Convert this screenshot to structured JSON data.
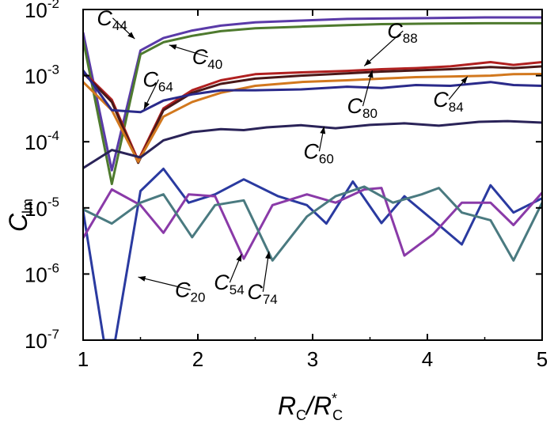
{
  "chart_data": {
    "type": "line",
    "title": "",
    "xlabel": {
      "main": "R",
      "sub1": "C",
      "slash": "/",
      "main2": "R",
      "sup": "*",
      "sub2": "C"
    },
    "ylabel": {
      "main": "C",
      "sub": "lm"
    },
    "xlim": [
      1,
      5
    ],
    "ylim": [
      1e-07,
      0.01
    ],
    "yscale": "log",
    "grid": false,
    "xticks": [
      {
        "value": 1,
        "label": "1"
      },
      {
        "value": 2,
        "label": "2"
      },
      {
        "value": 3,
        "label": "3"
      },
      {
        "value": 4,
        "label": "4"
      },
      {
        "value": 5,
        "label": "5"
      }
    ],
    "yticks": [
      {
        "value": 1e-07,
        "base": "10",
        "exp": "-7"
      },
      {
        "value": 1e-06,
        "base": "10",
        "exp": "-6"
      },
      {
        "value": 1e-05,
        "base": "10",
        "exp": "-5"
      },
      {
        "value": 0.0001,
        "base": "10",
        "exp": "-4"
      },
      {
        "value": 0.001,
        "base": "10",
        "exp": "-3"
      },
      {
        "value": 0.01,
        "base": "10",
        "exp": "-2"
      }
    ],
    "series": [
      {
        "id": "C44",
        "color": "#5a3aa8",
        "x": [
          1,
          1.25,
          1.5,
          1.7,
          1.95,
          2.2,
          2.5,
          2.9,
          3.3,
          3.6,
          4.0,
          4.5,
          5.0
        ],
        "y": [
          0.0045,
          3.7e-05,
          0.0024,
          0.0037,
          0.0048,
          0.0057,
          0.0064,
          0.0068,
          0.0072,
          0.0073,
          0.0074,
          0.0076,
          0.0076
        ]
      },
      {
        "id": "C40",
        "color": "#4e7a2e",
        "x": [
          1,
          1.25,
          1.5,
          1.7,
          1.95,
          2.2,
          2.5,
          2.9,
          3.3,
          3.6,
          4.0,
          4.5,
          5.0
        ],
        "y": [
          0.0035,
          2.3e-05,
          0.0021,
          0.0032,
          0.004,
          0.0047,
          0.0052,
          0.0055,
          0.0058,
          0.006,
          0.0061,
          0.0062,
          0.0062
        ]
      },
      {
        "id": "C88",
        "color": "#b02020",
        "x": [
          1,
          1.25,
          1.48,
          1.7,
          1.95,
          2.2,
          2.5,
          2.9,
          3.3,
          3.6,
          3.9,
          4.2,
          4.55,
          4.75,
          5.0
        ],
        "y": [
          0.00115,
          0.00043,
          5.2e-05,
          0.00032,
          0.0006,
          0.00085,
          0.00105,
          0.00112,
          0.00118,
          0.00125,
          0.0013,
          0.00138,
          0.0016,
          0.00145,
          0.0016
        ]
      },
      {
        "id": "C80",
        "color": "#4a1818",
        "x": [
          1,
          1.25,
          1.48,
          1.7,
          1.95,
          2.2,
          2.5,
          2.9,
          3.3,
          3.6,
          3.9,
          4.2,
          4.55,
          4.75,
          5.0
        ],
        "y": [
          0.0011,
          0.0004,
          4.8e-05,
          0.0003,
          0.00055,
          0.00075,
          0.0009,
          0.001,
          0.00108,
          0.00115,
          0.0012,
          0.00125,
          0.00135,
          0.0013,
          0.00138
        ]
      },
      {
        "id": "C84",
        "color": "#d2781e",
        "x": [
          1,
          1.25,
          1.48,
          1.7,
          1.95,
          2.2,
          2.5,
          2.9,
          3.3,
          3.6,
          3.9,
          4.2,
          4.55,
          4.75,
          5.0
        ],
        "y": [
          0.0008,
          0.0003,
          5e-05,
          0.00024,
          0.0004,
          0.00055,
          0.0007,
          0.0008,
          0.00085,
          0.0009,
          0.00095,
          0.00097,
          0.001,
          0.00105,
          0.00106
        ]
      },
      {
        "id": "C64",
        "color": "#2a2a8a",
        "x": [
          1,
          1.25,
          1.5,
          1.7,
          1.95,
          2.2,
          2.5,
          2.9,
          3.3,
          3.6,
          3.9,
          4.2,
          4.55,
          4.75,
          5.0
        ],
        "y": [
          0.0012,
          0.0003,
          0.00028,
          0.00042,
          0.00052,
          0.0006,
          0.0006,
          0.00062,
          0.00068,
          0.00065,
          0.00072,
          0.0007,
          0.0008,
          0.00072,
          0.0007
        ]
      },
      {
        "id": "C60",
        "color": "#2a2358",
        "x": [
          1,
          1.25,
          1.5,
          1.7,
          1.95,
          2.2,
          2.4,
          2.6,
          2.9,
          3.2,
          3.5,
          3.8,
          4.1,
          4.45,
          4.7,
          5.0
        ],
        "y": [
          4e-05,
          7.5e-05,
          5.8e-05,
          0.000105,
          0.00014,
          0.000155,
          0.00015,
          0.000165,
          0.000178,
          0.00016,
          0.00018,
          0.00019,
          0.000175,
          0.0002,
          0.000205,
          0.000195
        ]
      },
      {
        "id": "C20",
        "color": "#2a3aa0",
        "x": [
          1,
          1.18,
          1.28,
          1.5,
          1.7,
          1.92,
          2.15,
          2.4,
          2.7,
          2.95,
          3.12,
          3.35,
          3.6,
          3.8,
          4.05,
          4.3,
          4.55,
          4.75,
          5.0
        ],
        "y": [
          9e-06,
          1e-07,
          1e-07,
          1.8e-05,
          3.9e-05,
          1.2e-05,
          1.6e-05,
          2.7e-05,
          1.5e-05,
          1.1e-05,
          5.8e-06,
          2.5e-05,
          5.9e-06,
          1.5e-05,
          6.5e-06,
          2.8e-06,
          2.2e-05,
          8.5e-06,
          1.4e-05
        ]
      },
      {
        "id": "C54",
        "color": "#8a3aa8",
        "x": [
          1,
          1.25,
          1.5,
          1.7,
          1.92,
          2.15,
          2.4,
          2.65,
          2.95,
          3.2,
          3.45,
          3.6,
          3.8,
          4.05,
          4.3,
          4.55,
          4.75,
          5.0
        ],
        "y": [
          3.5e-06,
          1.9e-05,
          1.1e-05,
          4.2e-06,
          1.6e-05,
          1.5e-05,
          1.7e-06,
          1.1e-05,
          1.6e-05,
          1.2e-05,
          1.9e-05,
          2e-05,
          1.9e-06,
          4e-06,
          1.2e-05,
          1.2e-05,
          5.5e-06,
          1.7e-05
        ]
      },
      {
        "id": "C74",
        "color": "#4a7a80",
        "x": [
          1,
          1.25,
          1.5,
          1.7,
          1.95,
          2.15,
          2.4,
          2.65,
          2.95,
          3.2,
          3.45,
          3.7,
          3.95,
          4.1,
          4.3,
          4.55,
          4.75,
          5.0
        ],
        "y": [
          9.5e-06,
          5.8e-06,
          1.2e-05,
          1.6e-05,
          3.6e-06,
          1.1e-05,
          1.3e-05,
          1.6e-06,
          7.4e-06,
          1.5e-05,
          2.1e-05,
          1.2e-05,
          1.6e-05,
          2e-05,
          8.5e-06,
          6.5e-06,
          1.6e-06,
          1.2e-05
        ]
      }
    ],
    "annotations": [
      {
        "series": "C44",
        "main": "C",
        "sub": "44",
        "tx": 1.12,
        "ty": 0.0058,
        "px": 1.45,
        "py": 0.0036
      },
      {
        "series": "C40",
        "main": "C",
        "sub": "40",
        "tx": 1.95,
        "ty": 0.0015,
        "px": 1.75,
        "py": 0.0029
      },
      {
        "series": "C64",
        "main": "C",
        "sub": "64",
        "tx": 1.52,
        "ty": 0.00068,
        "px": 1.53,
        "py": 0.00031
      },
      {
        "series": "C88",
        "main": "C",
        "sub": "88",
        "tx": 3.65,
        "ty": 0.0037,
        "px": 3.45,
        "py": 0.0014
      },
      {
        "series": "C80",
        "main": "C",
        "sub": "80",
        "tx": 3.3,
        "ty": 0.00027,
        "px": 3.52,
        "py": 0.0012
      },
      {
        "series": "C84",
        "main": "C",
        "sub": "84",
        "tx": 4.05,
        "ty": 0.00034,
        "px": 4.35,
        "py": 0.00097
      },
      {
        "series": "C60",
        "main": "C",
        "sub": "60",
        "tx": 2.92,
        "ty": 5.6e-05,
        "px": 3.1,
        "py": 0.00017
      },
      {
        "series": "C20",
        "main": "C",
        "sub": "20",
        "tx": 1.8,
        "ty": 4.5e-07,
        "px": 1.48,
        "py": 9e-07
      },
      {
        "series": "C54",
        "main": "C",
        "sub": "54",
        "tx": 2.14,
        "ty": 5.8e-07,
        "px": 2.38,
        "py": 2e-06
      },
      {
        "series": "C74",
        "main": "C",
        "sub": "74",
        "tx": 2.43,
        "ty": 4.2e-07,
        "px": 2.62,
        "py": 2.2e-06
      }
    ]
  }
}
